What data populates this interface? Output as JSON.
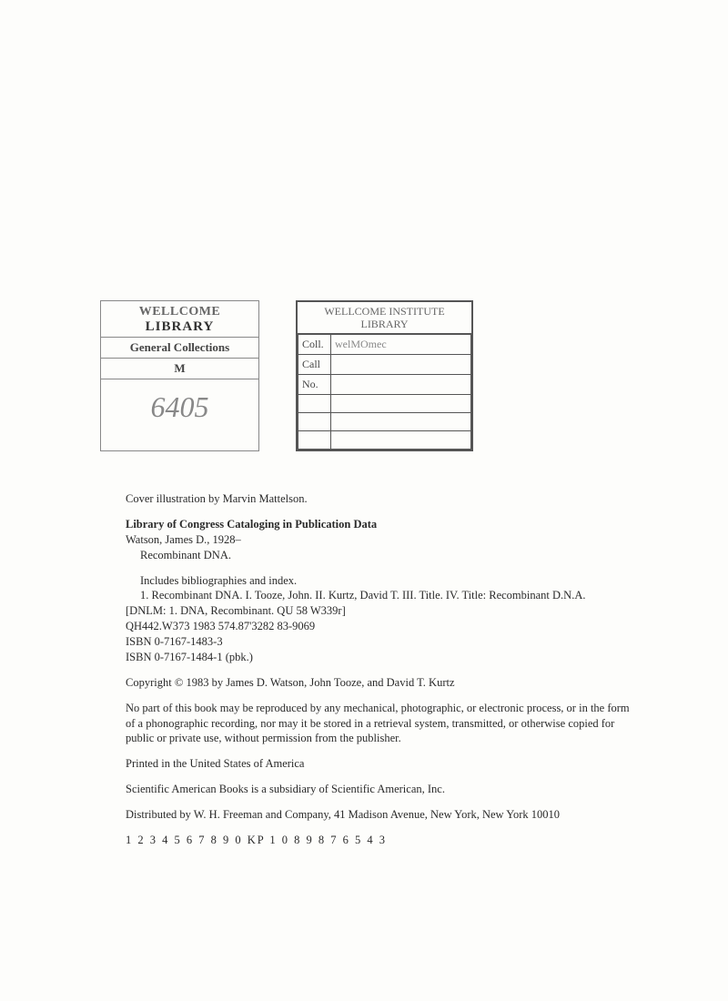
{
  "stamps": {
    "left": {
      "title1": "WELLCOME",
      "title2": "LIBRARY",
      "row1": "General Collections",
      "row2": "M",
      "number": "6405"
    },
    "right": {
      "header1": "WELLCOME INSTITUTE",
      "header2": "LIBRARY",
      "rows": [
        {
          "label": "Coll.",
          "value": "welMOmec"
        },
        {
          "label": "Call",
          "value": ""
        },
        {
          "label": "No.",
          "value": ""
        },
        {
          "label": "",
          "value": ""
        },
        {
          "label": "",
          "value": ""
        },
        {
          "label": "",
          "value": ""
        }
      ]
    }
  },
  "body": {
    "cover_illustration": "Cover illustration by Marvin Mattelson.",
    "cip_title": "Library of Congress Cataloging in Publication Data",
    "cip_author": "Watson, James D., 1928–",
    "cip_work": "Recombinant DNA.",
    "includes": "Includes bibliographies and index.",
    "subjects": "1. Recombinant DNA.   I. Tooze, John.   II. Kurtz, David T.   III. Title.   IV. Title: Recombinant D.N.A.",
    "dnlm": "[DNLM: 1. DNA, Recombinant.   QU 58 W339r]",
    "classline": "QH442.W373 1983          574.87'3282          83-9069",
    "isbn1": "ISBN 0-7167-1483-3",
    "isbn2": "ISBN 0-7167-1484-1 (pbk.)",
    "copyright": "Copyright © 1983 by James D. Watson, John Tooze, and David T. Kurtz",
    "rights": "No part of this book may be reproduced by any mechanical, photographic, or electronic process, or in the form of a phonographic recording, nor may it be stored in a retrieval system, transmitted, or otherwise copied for public or private use, without permission from the publisher.",
    "printed": "Printed in the United States of America",
    "subsidiary": "Scientific American Books is a subsidiary of Scientific American, Inc.",
    "distributed": "Distributed by W. H. Freeman and Company, 41 Madison Avenue, New York, New York 10010",
    "printline": "1 2 3 4 5 6 7 8 9 0   KP   1 0 8 9 8 7 6 5 4 3"
  }
}
